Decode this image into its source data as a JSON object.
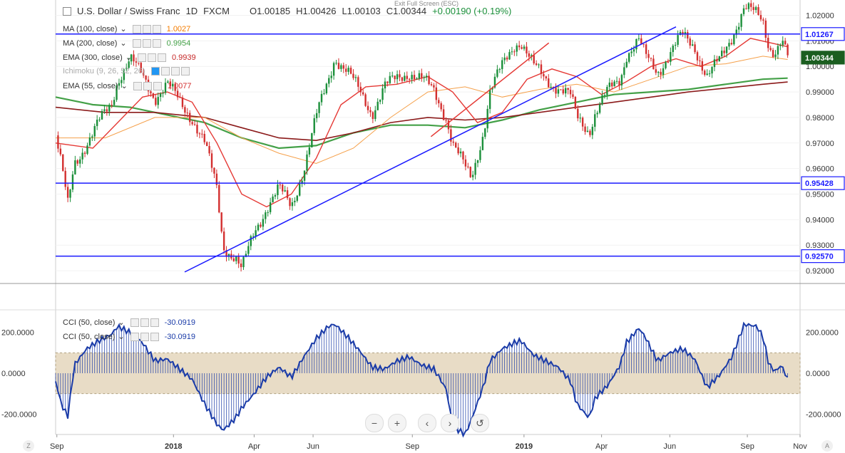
{
  "header": {
    "collapse_icon": "minus-square-icon",
    "symbol": "U.S. Dollar / Swiss Franc",
    "interval": "1D",
    "exchange": "FXCM",
    "open": "O1.00185",
    "high": "H1.00426",
    "low": "L1.00103",
    "close": "C1.00344",
    "change": "+0.00190 (+0.19%)",
    "exit_hint": "Exit Full Screen (ESC)"
  },
  "indicators": [
    {
      "label": "MA (100, close)",
      "value": "1.0027",
      "color": "#f57c00"
    },
    {
      "label": "MA (200, close)",
      "value": "0.9954",
      "color": "#43a047"
    },
    {
      "label": "EMA (300, close)",
      "value": "0.9939",
      "color": "#c62828"
    },
    {
      "label": "Ichimoku (9, 26, 52, 26)",
      "value": "",
      "color": "#1565c0"
    },
    {
      "label": "EMA (55, close)",
      "value": "1.0077",
      "color": "#d32f2f"
    }
  ],
  "cci_indicators": [
    {
      "label": "CCI (50, close)",
      "value": "-30.0919"
    },
    {
      "label": "CCI (50, close)",
      "value": "-30.0919"
    }
  ],
  "price_axis": {
    "ticks": [
      "1.02000",
      "1.01000",
      "1.00000",
      "0.99000",
      "0.98000",
      "0.97000",
      "0.96000",
      "0.95000",
      "0.94000",
      "0.93000",
      "0.92000"
    ],
    "levels": [
      {
        "label": "1.01267",
        "value": 1.01267,
        "style": "outline"
      },
      {
        "label": "1.00344",
        "value": 1.00344,
        "style": "current"
      },
      {
        "label": "0.95428",
        "value": 0.95428,
        "style": "outline"
      },
      {
        "label": "0.92570",
        "value": 0.9257,
        "style": "outline"
      }
    ]
  },
  "cci_axis": {
    "ticks": [
      "200.0000",
      "0.0000",
      "-200.0000"
    ]
  },
  "time_axis": [
    "Sep",
    "2018",
    "Apr",
    "Jun",
    "Sep",
    "2019",
    "Apr",
    "Jun",
    "Sep",
    "Nov"
  ],
  "nav_buttons": [
    "−",
    "+",
    "‹",
    "›",
    "↺"
  ],
  "corner_left": "Z",
  "corner_right": "A",
  "chart_data": {
    "type": "candlestick",
    "symbol": "USDCHF",
    "ylim": [
      0.915,
      1.026
    ],
    "cci_ylim": [
      -300,
      300
    ],
    "cci_band": [
      -100,
      100
    ],
    "horizontal_lines": [
      1.01267,
      0.95428,
      0.9257
    ],
    "trendlines": [
      {
        "name": "blue support",
        "color": "#1a1aff",
        "from": {
          "t": 0.208,
          "p": 0.9195
        },
        "to": {
          "t": 1.0,
          "p": 1.0155
        }
      },
      {
        "name": "red support",
        "color": "#e53935",
        "from": {
          "t": 0.605,
          "p": 0.9725
        },
        "to": {
          "t": 0.795,
          "p": 1.0092
        }
      }
    ],
    "price_series": [
      {
        "t": 0.0,
        "p": 0.973
      },
      {
        "t": 0.01,
        "p": 0.96
      },
      {
        "t": 0.02,
        "p": 0.945
      },
      {
        "t": 0.03,
        "p": 0.962
      },
      {
        "t": 0.05,
        "p": 0.97
      },
      {
        "t": 0.07,
        "p": 0.978
      },
      {
        "t": 0.09,
        "p": 0.985
      },
      {
        "t": 0.1,
        "p": 0.995
      },
      {
        "t": 0.12,
        "p": 1.003
      },
      {
        "t": 0.14,
        "p": 0.996
      },
      {
        "t": 0.16,
        "p": 0.988
      },
      {
        "t": 0.18,
        "p": 0.993
      },
      {
        "t": 0.2,
        "p": 0.986
      },
      {
        "t": 0.22,
        "p": 0.98
      },
      {
        "t": 0.24,
        "p": 0.97
      },
      {
        "t": 0.26,
        "p": 0.952
      },
      {
        "t": 0.27,
        "p": 0.93
      },
      {
        "t": 0.29,
        "p": 0.925
      },
      {
        "t": 0.3,
        "p": 0.92
      },
      {
        "t": 0.32,
        "p": 0.935
      },
      {
        "t": 0.34,
        "p": 0.945
      },
      {
        "t": 0.36,
        "p": 0.952
      },
      {
        "t": 0.38,
        "p": 0.945
      },
      {
        "t": 0.4,
        "p": 0.96
      },
      {
        "t": 0.42,
        "p": 0.98
      },
      {
        "t": 0.44,
        "p": 0.995
      },
      {
        "t": 0.45,
        "p": 1.004
      },
      {
        "t": 0.47,
        "p": 0.998
      },
      {
        "t": 0.49,
        "p": 0.99
      },
      {
        "t": 0.51,
        "p": 0.982
      },
      {
        "t": 0.53,
        "p": 0.992
      },
      {
        "t": 0.55,
        "p": 0.995
      },
      {
        "t": 0.57,
        "p": 0.998
      },
      {
        "t": 0.59,
        "p": 0.995
      },
      {
        "t": 0.61,
        "p": 0.99
      },
      {
        "t": 0.63,
        "p": 0.98
      },
      {
        "t": 0.64,
        "p": 0.97
      },
      {
        "t": 0.66,
        "p": 0.96
      },
      {
        "t": 0.67,
        "p": 0.956
      },
      {
        "t": 0.69,
        "p": 0.975
      },
      {
        "t": 0.7,
        "p": 0.99
      },
      {
        "t": 0.72,
        "p": 1.0
      },
      {
        "t": 0.74,
        "p": 1.009
      },
      {
        "t": 0.75,
        "p": 1.01
      },
      {
        "t": 0.77,
        "p": 1.0
      },
      {
        "t": 0.79,
        "p": 0.995
      },
      {
        "t": 0.81,
        "p": 0.992
      },
      {
        "t": 0.83,
        "p": 0.988
      },
      {
        "t": 0.84,
        "p": 0.98
      },
      {
        "t": 0.86,
        "p": 0.975
      },
      {
        "t": 0.87,
        "p": 0.982
      },
      {
        "t": 0.89,
        "p": 0.99
      },
      {
        "t": 0.91,
        "p": 0.995
      },
      {
        "t": 0.92,
        "p": 1.005
      },
      {
        "t": 0.94,
        "p": 1.01
      },
      {
        "t": 0.95,
        "p": 1.004
      },
      {
        "t": 0.97,
        "p": 0.998
      },
      {
        "t": 0.99,
        "p": 1.005
      },
      {
        "t": 1.01,
        "p": 1.012
      },
      {
        "t": 1.03,
        "p": 1.008
      },
      {
        "t": 1.05,
        "p": 0.996
      },
      {
        "t": 1.07,
        "p": 1.002
      },
      {
        "t": 1.09,
        "p": 1.012
      },
      {
        "t": 1.11,
        "p": 1.023
      },
      {
        "t": 1.13,
        "p": 1.02
      },
      {
        "t": 1.14,
        "p": 1.018
      },
      {
        "t": 1.15,
        "p": 1.008
      },
      {
        "t": 1.16,
        "p": 1.006
      },
      {
        "t": 1.17,
        "p": 1.01
      },
      {
        "t": 1.18,
        "p": 1.0034
      }
    ],
    "ema55": [
      {
        "t": 0.0,
        "p": 0.97
      },
      {
        "t": 0.06,
        "p": 0.968
      },
      {
        "t": 0.1,
        "p": 0.978
      },
      {
        "t": 0.14,
        "p": 0.988
      },
      {
        "t": 0.18,
        "p": 0.99
      },
      {
        "t": 0.22,
        "p": 0.986
      },
      {
        "t": 0.26,
        "p": 0.97
      },
      {
        "t": 0.3,
        "p": 0.95
      },
      {
        "t": 0.34,
        "p": 0.945
      },
      {
        "t": 0.38,
        "p": 0.95
      },
      {
        "t": 0.42,
        "p": 0.964
      },
      {
        "t": 0.46,
        "p": 0.985
      },
      {
        "t": 0.5,
        "p": 0.992
      },
      {
        "t": 0.55,
        "p": 0.993
      },
      {
        "t": 0.6,
        "p": 0.996
      },
      {
        "t": 0.64,
        "p": 0.99
      },
      {
        "t": 0.68,
        "p": 0.978
      },
      {
        "t": 0.72,
        "p": 0.982
      },
      {
        "t": 0.76,
        "p": 0.995
      },
      {
        "t": 0.8,
        "p": 0.999
      },
      {
        "t": 0.84,
        "p": 0.996
      },
      {
        "t": 0.88,
        "p": 0.989
      },
      {
        "t": 0.92,
        "p": 0.994
      },
      {
        "t": 0.96,
        "p": 1.0
      },
      {
        "t": 1.0,
        "p": 1.003
      },
      {
        "t": 1.04,
        "p": 1.0
      },
      {
        "t": 1.08,
        "p": 1.004
      },
      {
        "t": 1.12,
        "p": 1.011
      },
      {
        "t": 1.18,
        "p": 1.0077
      }
    ],
    "ma100": [
      {
        "t": 0.0,
        "p": 0.972
      },
      {
        "t": 0.08,
        "p": 0.972
      },
      {
        "t": 0.16,
        "p": 0.98
      },
      {
        "t": 0.24,
        "p": 0.98
      },
      {
        "t": 0.3,
        "p": 0.972
      },
      {
        "t": 0.36,
        "p": 0.966
      },
      {
        "t": 0.42,
        "p": 0.962
      },
      {
        "t": 0.48,
        "p": 0.968
      },
      {
        "t": 0.54,
        "p": 0.98
      },
      {
        "t": 0.6,
        "p": 0.99
      },
      {
        "t": 0.66,
        "p": 0.992
      },
      {
        "t": 0.72,
        "p": 0.988
      },
      {
        "t": 0.78,
        "p": 0.991
      },
      {
        "t": 0.84,
        "p": 0.993
      },
      {
        "t": 0.9,
        "p": 0.99
      },
      {
        "t": 0.96,
        "p": 0.995
      },
      {
        "t": 1.02,
        "p": 1.0
      },
      {
        "t": 1.08,
        "p": 1.001
      },
      {
        "t": 1.14,
        "p": 1.004
      },
      {
        "t": 1.18,
        "p": 1.0027
      }
    ],
    "ma200": [
      {
        "t": 0.0,
        "p": 0.988
      },
      {
        "t": 0.06,
        "p": 0.985
      },
      {
        "t": 0.12,
        "p": 0.984
      },
      {
        "t": 0.18,
        "p": 0.981
      },
      {
        "t": 0.24,
        "p": 0.978
      },
      {
        "t": 0.3,
        "p": 0.972
      },
      {
        "t": 0.36,
        "p": 0.968
      },
      {
        "t": 0.42,
        "p": 0.969
      },
      {
        "t": 0.48,
        "p": 0.974
      },
      {
        "t": 0.54,
        "p": 0.977
      },
      {
        "t": 0.6,
        "p": 0.977
      },
      {
        "t": 0.66,
        "p": 0.976
      },
      {
        "t": 0.72,
        "p": 0.979
      },
      {
        "t": 0.78,
        "p": 0.983
      },
      {
        "t": 0.84,
        "p": 0.986
      },
      {
        "t": 0.9,
        "p": 0.989
      },
      {
        "t": 0.96,
        "p": 0.99
      },
      {
        "t": 1.02,
        "p": 0.991
      },
      {
        "t": 1.08,
        "p": 0.993
      },
      {
        "t": 1.14,
        "p": 0.995
      },
      {
        "t": 1.18,
        "p": 0.9954
      }
    ],
    "ema300": [
      {
        "t": 0.0,
        "p": 0.984
      },
      {
        "t": 0.08,
        "p": 0.982
      },
      {
        "t": 0.16,
        "p": 0.982
      },
      {
        "t": 0.24,
        "p": 0.98
      },
      {
        "t": 0.3,
        "p": 0.976
      },
      {
        "t": 0.36,
        "p": 0.972
      },
      {
        "t": 0.42,
        "p": 0.971
      },
      {
        "t": 0.48,
        "p": 0.974
      },
      {
        "t": 0.54,
        "p": 0.978
      },
      {
        "t": 0.6,
        "p": 0.98
      },
      {
        "t": 0.66,
        "p": 0.979
      },
      {
        "t": 0.72,
        "p": 0.98
      },
      {
        "t": 0.78,
        "p": 0.982
      },
      {
        "t": 0.84,
        "p": 0.984
      },
      {
        "t": 0.9,
        "p": 0.986
      },
      {
        "t": 0.96,
        "p": 0.988
      },
      {
        "t": 1.02,
        "p": 0.99
      },
      {
        "t": 1.08,
        "p": 0.9915
      },
      {
        "t": 1.14,
        "p": 0.993
      },
      {
        "t": 1.18,
        "p": 0.9939
      }
    ],
    "cci": [
      {
        "t": 0.0,
        "v": -40
      },
      {
        "t": 0.01,
        "v": -160
      },
      {
        "t": 0.02,
        "v": -210
      },
      {
        "t": 0.03,
        "v": 40
      },
      {
        "t": 0.05,
        "v": 120
      },
      {
        "t": 0.07,
        "v": 160
      },
      {
        "t": 0.09,
        "v": 190
      },
      {
        "t": 0.1,
        "v": 230
      },
      {
        "t": 0.12,
        "v": 200
      },
      {
        "t": 0.14,
        "v": 150
      },
      {
        "t": 0.16,
        "v": 60
      },
      {
        "t": 0.18,
        "v": 70
      },
      {
        "t": 0.2,
        "v": 20
      },
      {
        "t": 0.22,
        "v": -30
      },
      {
        "t": 0.24,
        "v": -150
      },
      {
        "t": 0.26,
        "v": -250
      },
      {
        "t": 0.27,
        "v": -280
      },
      {
        "t": 0.29,
        "v": -220
      },
      {
        "t": 0.3,
        "v": -170
      },
      {
        "t": 0.32,
        "v": -100
      },
      {
        "t": 0.34,
        "v": -20
      },
      {
        "t": 0.36,
        "v": 30
      },
      {
        "t": 0.38,
        "v": -20
      },
      {
        "t": 0.4,
        "v": 80
      },
      {
        "t": 0.42,
        "v": 170
      },
      {
        "t": 0.44,
        "v": 230
      },
      {
        "t": 0.45,
        "v": 240
      },
      {
        "t": 0.47,
        "v": 180
      },
      {
        "t": 0.49,
        "v": 110
      },
      {
        "t": 0.51,
        "v": 30
      },
      {
        "t": 0.53,
        "v": 20
      },
      {
        "t": 0.55,
        "v": 60
      },
      {
        "t": 0.57,
        "v": 80
      },
      {
        "t": 0.59,
        "v": 40
      },
      {
        "t": 0.61,
        "v": 20
      },
      {
        "t": 0.63,
        "v": -80
      },
      {
        "t": 0.64,
        "v": -260
      },
      {
        "t": 0.66,
        "v": -300
      },
      {
        "t": 0.67,
        "v": -230
      },
      {
        "t": 0.69,
        "v": -60
      },
      {
        "t": 0.7,
        "v": 60
      },
      {
        "t": 0.72,
        "v": 120
      },
      {
        "t": 0.74,
        "v": 150
      },
      {
        "t": 0.75,
        "v": 160
      },
      {
        "t": 0.77,
        "v": 90
      },
      {
        "t": 0.79,
        "v": 60
      },
      {
        "t": 0.81,
        "v": 30
      },
      {
        "t": 0.83,
        "v": -40
      },
      {
        "t": 0.84,
        "v": -150
      },
      {
        "t": 0.86,
        "v": -220
      },
      {
        "t": 0.87,
        "v": -120
      },
      {
        "t": 0.89,
        "v": -60
      },
      {
        "t": 0.91,
        "v": 40
      },
      {
        "t": 0.92,
        "v": 150
      },
      {
        "t": 0.94,
        "v": 220
      },
      {
        "t": 0.95,
        "v": 180
      },
      {
        "t": 0.97,
        "v": 60
      },
      {
        "t": 0.99,
        "v": 100
      },
      {
        "t": 1.01,
        "v": 120
      },
      {
        "t": 1.03,
        "v": 70
      },
      {
        "t": 1.05,
        "v": -70
      },
      {
        "t": 1.07,
        "v": -10
      },
      {
        "t": 1.09,
        "v": 80
      },
      {
        "t": 1.11,
        "v": 240
      },
      {
        "t": 1.13,
        "v": 230
      },
      {
        "t": 1.14,
        "v": 180
      },
      {
        "t": 1.15,
        "v": 40
      },
      {
        "t": 1.16,
        "v": 10
      },
      {
        "t": 1.17,
        "v": 40
      },
      {
        "t": 1.18,
        "v": -30
      }
    ]
  }
}
